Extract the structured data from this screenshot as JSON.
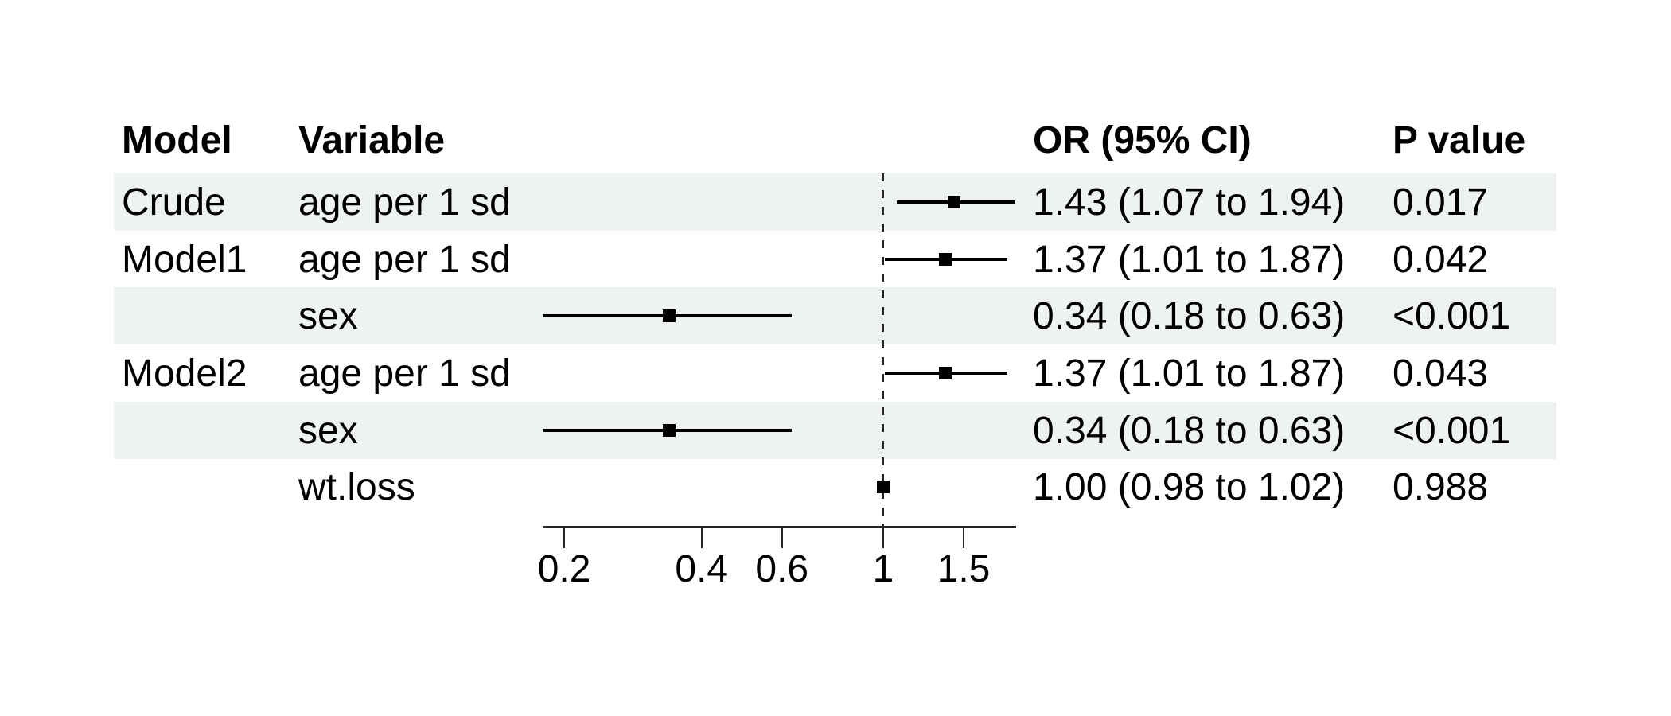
{
  "figure": {
    "headers": {
      "model": "Model",
      "variable": "Variable",
      "or_ci": "OR (95% CI)",
      "p": "P value"
    },
    "rows": [
      {
        "model": "Crude",
        "variable": "age per 1 sd",
        "or_ci": "1.43 (1.07 to 1.94)",
        "p": "0.017"
      },
      {
        "model": "Model1",
        "variable": "age per 1 sd",
        "or_ci": "1.37 (1.01 to 1.87)",
        "p": "0.042"
      },
      {
        "model": "",
        "variable": "sex",
        "or_ci": "0.34 (0.18 to 0.63)",
        "p": "<0.001"
      },
      {
        "model": "Model2",
        "variable": "age per 1 sd",
        "or_ci": "1.37 (1.01 to 1.87)",
        "p": "0.043"
      },
      {
        "model": "",
        "variable": "sex",
        "or_ci": "0.34 (0.18 to 0.63)",
        "p": "<0.001"
      },
      {
        "model": "",
        "variable": "wt.loss",
        "or_ci": "1.00 (0.98 to 1.02)",
        "p": "0.988"
      }
    ]
  },
  "chart_data": {
    "type": "forest",
    "x_scale": "log",
    "ref_line": 1,
    "x_range": [
      0.18,
      1.96
    ],
    "ticks": [
      0.2,
      0.4,
      0.6,
      1,
      1.5
    ],
    "tick_labels": [
      "0.2",
      "0.4",
      "0.6",
      "1",
      "1.5"
    ],
    "series": [
      {
        "label": "Crude age per 1 sd",
        "est": 1.43,
        "lo": 1.07,
        "hi": 1.94
      },
      {
        "label": "Model1 age per 1 sd",
        "est": 1.37,
        "lo": 1.01,
        "hi": 1.87
      },
      {
        "label": "Model1 sex",
        "est": 0.34,
        "lo": 0.18,
        "hi": 0.63
      },
      {
        "label": "Model2 age per 1 sd",
        "est": 1.37,
        "lo": 1.01,
        "hi": 1.87
      },
      {
        "label": "Model2 sex",
        "est": 0.34,
        "lo": 0.18,
        "hi": 0.63
      },
      {
        "label": "Model2 wt.loss",
        "est": 1.0,
        "lo": 0.98,
        "hi": 1.02
      }
    ],
    "legend_position": "none",
    "grid": false
  },
  "colors": {
    "band": "#eef2f0",
    "ink": "#000000",
    "axis": "#262626"
  }
}
